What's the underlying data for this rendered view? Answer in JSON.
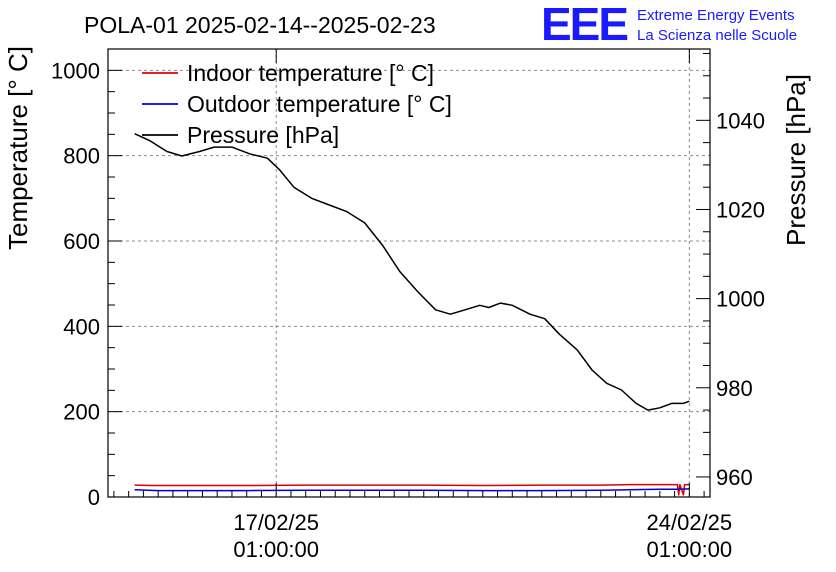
{
  "title": "POLA-01 2025-02-14--2025-02-23",
  "brand": {
    "logo": "EEE",
    "line1": "Extreme Energy Events",
    "line2": "La Scienza nelle Scuole",
    "color": "#1a1aff"
  },
  "chart_data": {
    "type": "line",
    "grid": true,
    "legend_position": "top-left",
    "y_left": {
      "label": "Temperature [° C]",
      "range": [
        0,
        1050
      ],
      "ticks": [
        0,
        200,
        400,
        600,
        800,
        1000
      ]
    },
    "y_right": {
      "label": "Pressure [hPa]",
      "range": [
        955.5,
        1056
      ],
      "ticks": [
        960,
        980,
        1000,
        1020,
        1040
      ]
    },
    "x": {
      "unit": "days",
      "range": [
        -2.85,
        7.35
      ],
      "ticks": [
        {
          "value": 0,
          "date": "17/02/25",
          "time": "01:00:00"
        },
        {
          "value": 7,
          "date": "24/02/25",
          "time": "01:00:00"
        }
      ]
    },
    "series": [
      {
        "name": "Indoor temperature [° C]",
        "axis": "left",
        "color": "#e00000",
        "points": [
          [
            -2.4,
            28
          ],
          [
            -2.1,
            27
          ],
          [
            -1.5,
            27
          ],
          [
            -0.5,
            27
          ],
          [
            0.5,
            28
          ],
          [
            1.5,
            28
          ],
          [
            2.5,
            28
          ],
          [
            3.5,
            27
          ],
          [
            4.5,
            28
          ],
          [
            5.5,
            28
          ],
          [
            6.0,
            29
          ],
          [
            6.5,
            29
          ],
          [
            6.8,
            29
          ],
          [
            6.82,
            5
          ],
          [
            6.84,
            29
          ],
          [
            6.9,
            5
          ],
          [
            6.92,
            29
          ],
          [
            7.0,
            29
          ]
        ]
      },
      {
        "name": "Outdoor temperature [° C]",
        "axis": "left",
        "color": "#0000dd",
        "points": [
          [
            -2.4,
            17
          ],
          [
            -2.0,
            15
          ],
          [
            -1.5,
            15
          ],
          [
            -0.5,
            15
          ],
          [
            0.5,
            16
          ],
          [
            1.5,
            16
          ],
          [
            2.5,
            16
          ],
          [
            3.5,
            15
          ],
          [
            4.5,
            15
          ],
          [
            5.5,
            16
          ],
          [
            6.0,
            17
          ],
          [
            6.5,
            18
          ],
          [
            6.8,
            18
          ],
          [
            7.0,
            19
          ]
        ]
      },
      {
        "name": "Pressure [hPa]",
        "axis": "right",
        "color": "#000000",
        "points": [
          [
            -2.4,
            1037
          ],
          [
            -2.15,
            1035.5
          ],
          [
            -1.85,
            1033
          ],
          [
            -1.6,
            1032
          ],
          [
            -1.3,
            1033
          ],
          [
            -1.05,
            1034
          ],
          [
            -0.75,
            1034
          ],
          [
            -0.45,
            1032.5
          ],
          [
            -0.15,
            1031.5
          ],
          [
            0.05,
            1029
          ],
          [
            0.3,
            1025
          ],
          [
            0.6,
            1022.5
          ],
          [
            0.9,
            1021
          ],
          [
            1.2,
            1019.5
          ],
          [
            1.5,
            1017
          ],
          [
            1.8,
            1012
          ],
          [
            2.1,
            1006
          ],
          [
            2.4,
            1001.5
          ],
          [
            2.7,
            997.5
          ],
          [
            2.95,
            996.5
          ],
          [
            3.2,
            997.5
          ],
          [
            3.45,
            998.5
          ],
          [
            3.6,
            998
          ],
          [
            3.8,
            999
          ],
          [
            4.0,
            998.5
          ],
          [
            4.3,
            996.5
          ],
          [
            4.55,
            995.5
          ],
          [
            4.8,
            992
          ],
          [
            5.1,
            988.5
          ],
          [
            5.35,
            984
          ],
          [
            5.6,
            981
          ],
          [
            5.85,
            979.5
          ],
          [
            6.1,
            976.5
          ],
          [
            6.3,
            975
          ],
          [
            6.5,
            975.5
          ],
          [
            6.7,
            976.5
          ],
          [
            6.9,
            976.5
          ],
          [
            7.0,
            977
          ]
        ]
      }
    ]
  }
}
